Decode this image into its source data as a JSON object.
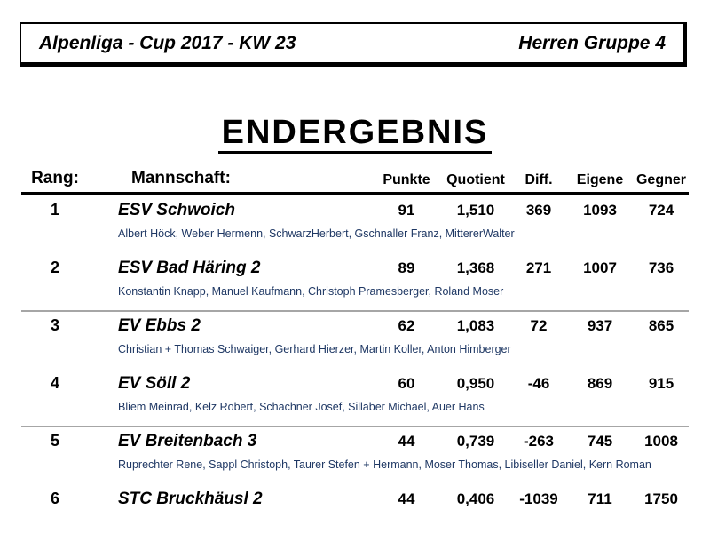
{
  "header": {
    "left": "Alpenliga - Cup 2017 - KW 23",
    "right": "Herren Gruppe 4"
  },
  "title": "ENDERGEBNIS",
  "table": {
    "headers": {
      "rank": "Rang:",
      "team": "Mannschaft:",
      "points": "Punkte",
      "quotient": "Quotient",
      "diff": "Diff.",
      "own": "Eigene",
      "opp": "Gegner"
    },
    "rows": [
      {
        "rank": "1",
        "team": "ESV Schwoich",
        "players": "Albert Höck, Weber Hermenn, SchwarzHerbert, Gschnaller Franz, MittererWalter",
        "points": "91",
        "quotient": "1,510",
        "diff": "369",
        "own": "1093",
        "opp": "724"
      },
      {
        "rank": "2",
        "team": "ESV Bad Häring 2",
        "players": "Konstantin Knapp, Manuel Kaufmann, Christoph Pramesberger, Roland Moser",
        "points": "89",
        "quotient": "1,368",
        "diff": "271",
        "own": "1007",
        "opp": "736"
      },
      {
        "rank": "3",
        "team": "EV Ebbs 2",
        "players": "Christian + Thomas Schwaiger, Gerhard Hierzer, Martin Koller, Anton Himberger",
        "points": "62",
        "quotient": "1,083",
        "diff": "72",
        "own": "937",
        "opp": "865"
      },
      {
        "rank": "4",
        "team": "EV Söll 2",
        "players": "Bliem Meinrad, Kelz Robert, Schachner Josef, Sillaber Michael, Auer Hans",
        "points": "60",
        "quotient": "0,950",
        "diff": "-46",
        "own": "869",
        "opp": "915"
      },
      {
        "rank": "5",
        "team": "EV Breitenbach 3",
        "players": "Ruprechter Rene, Sappl Christoph, Taurer Stefen + Hermann, Moser Thomas, Libiseller Daniel, Kern Roman",
        "points": "44",
        "quotient": "0,739",
        "diff": "-263",
        "own": "745",
        "opp": "1008"
      },
      {
        "rank": "6",
        "team": "STC Bruckhäusl 2",
        "players": "",
        "points": "44",
        "quotient": "0,406",
        "diff": "-1039",
        "own": "711",
        "opp": "1750"
      }
    ]
  },
  "colors": {
    "player_text": "#1f3864",
    "separator": "#a6a6a6"
  }
}
